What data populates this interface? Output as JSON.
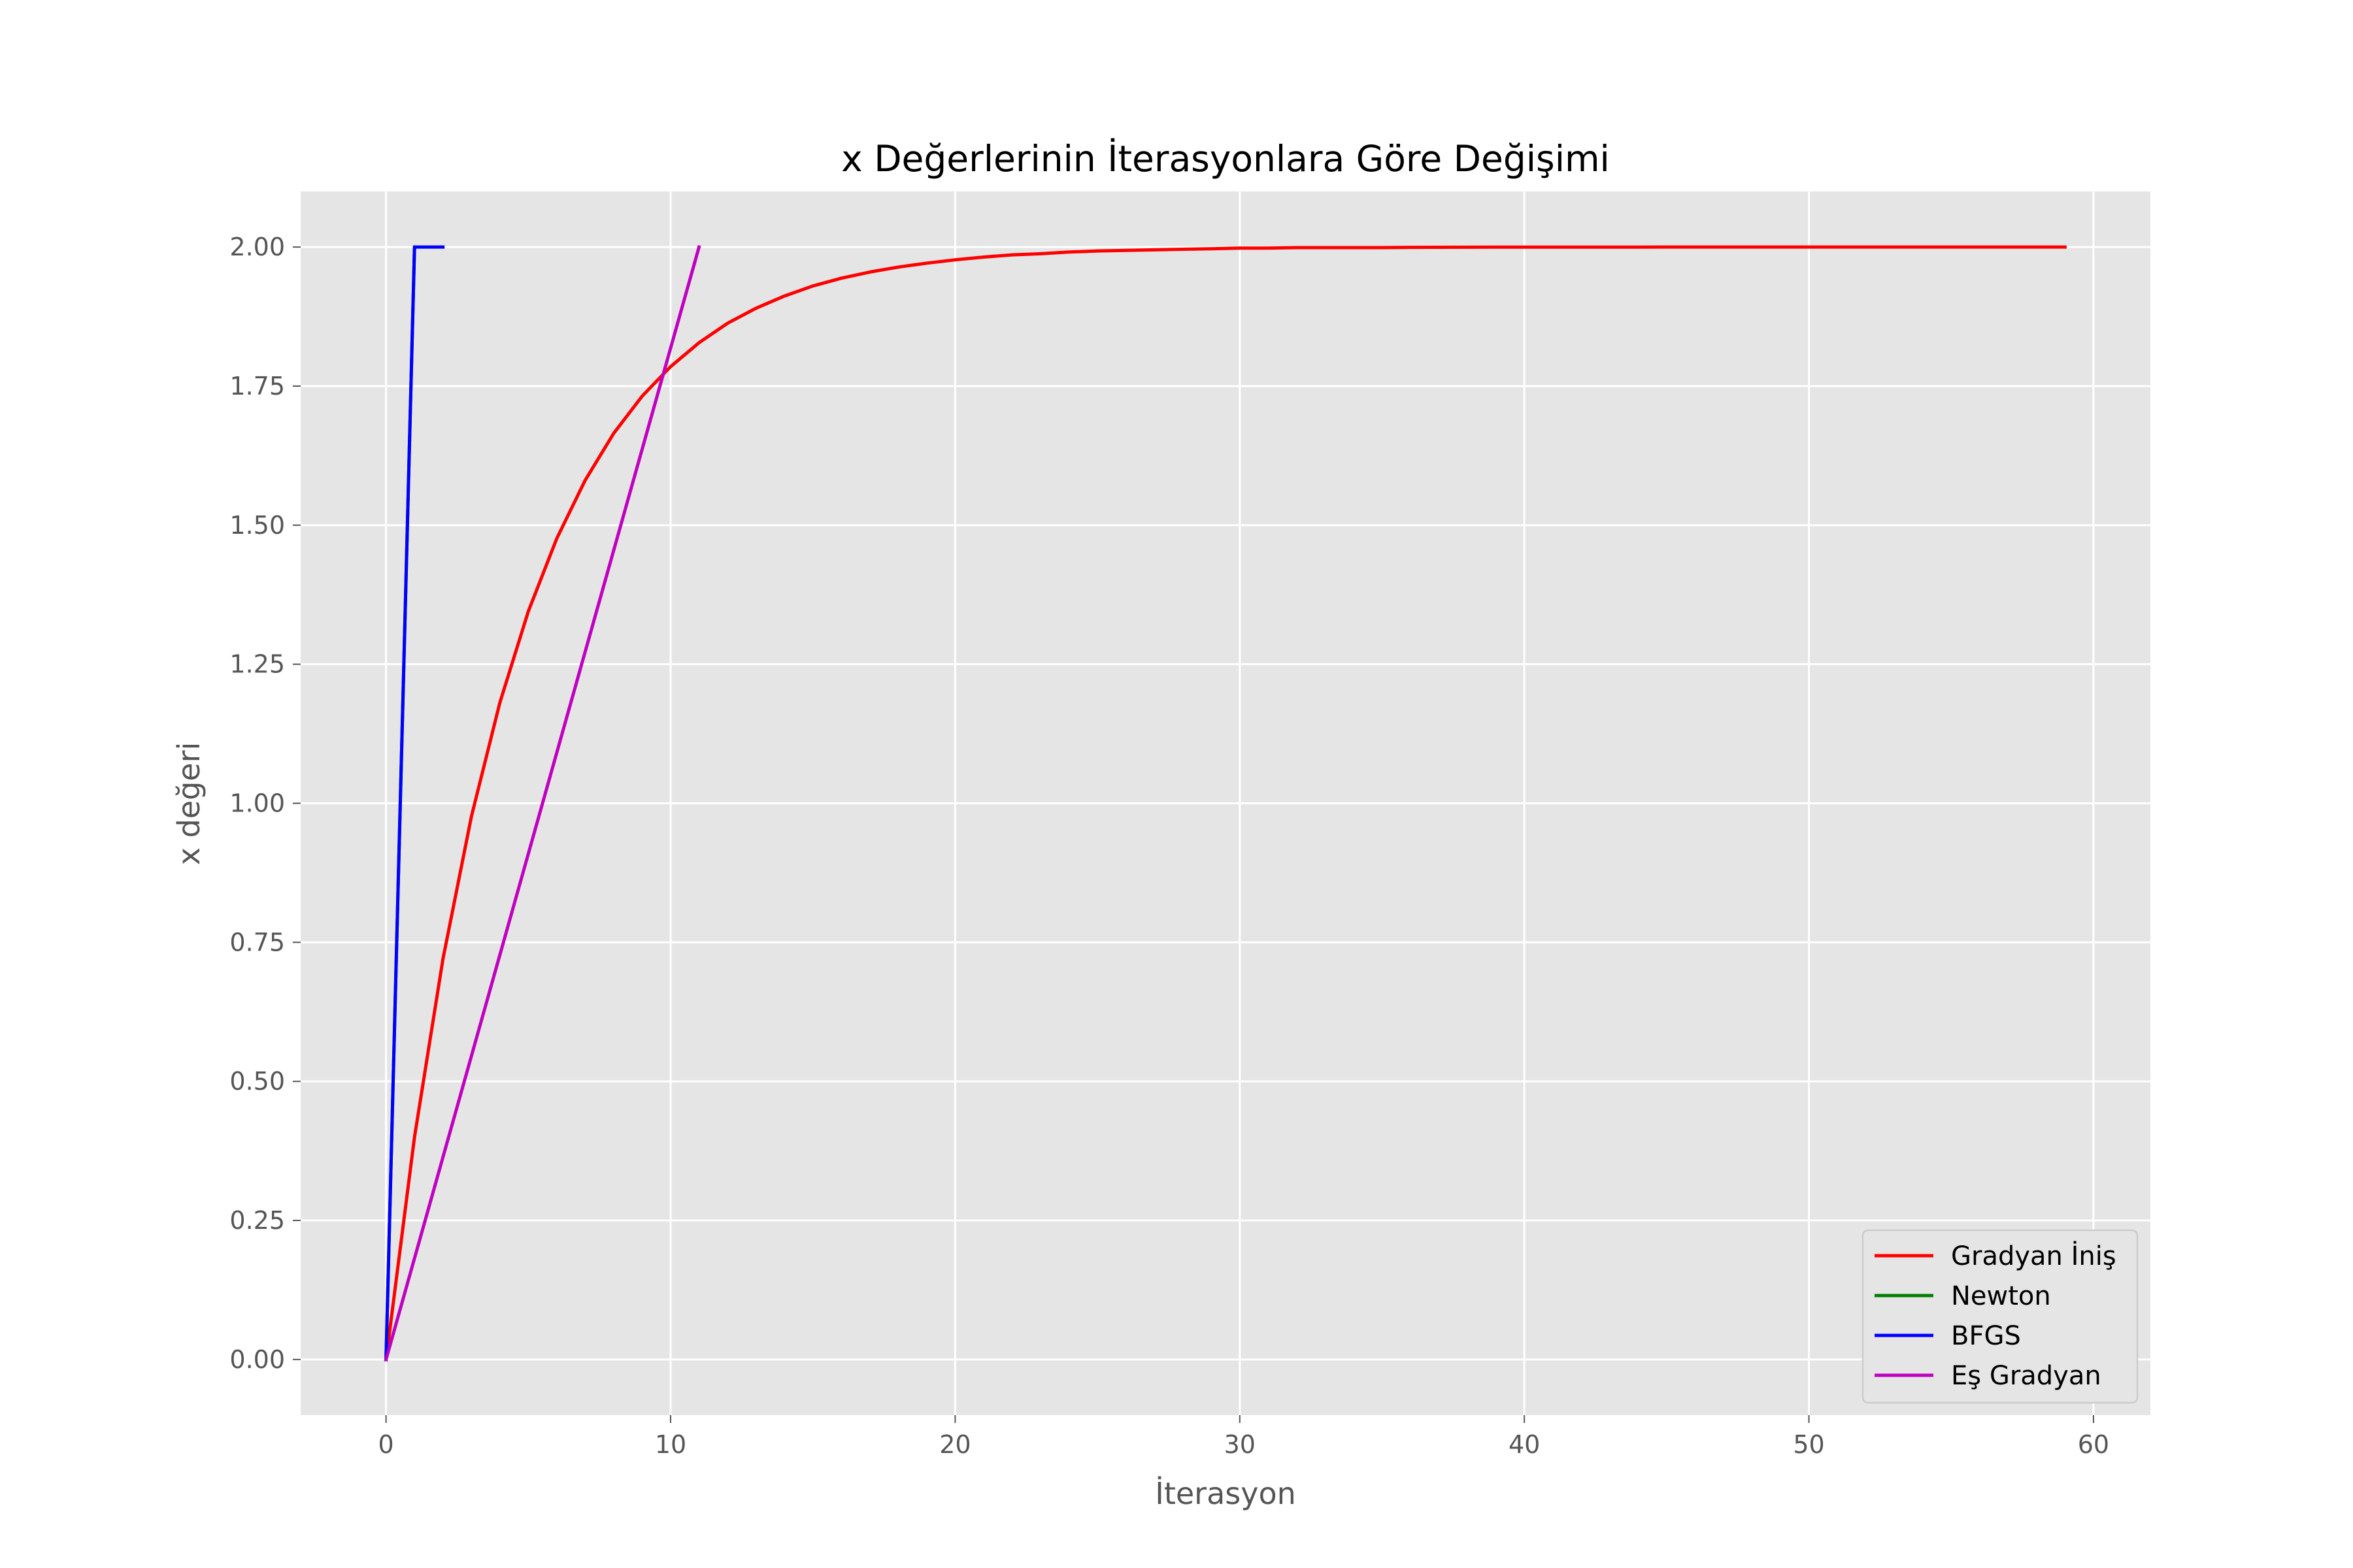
{
  "chart_data": {
    "type": "line",
    "title": "x Değerlerinin İterasyonlara Göre Değişimi",
    "xlabel": "İterasyon",
    "ylabel": "x değeri",
    "xlim": [
      -3,
      62
    ],
    "ylim": [
      -0.1,
      2.1
    ],
    "xticks": [
      0,
      10,
      20,
      30,
      40,
      50,
      60
    ],
    "yticks": [
      0.0,
      0.25,
      0.5,
      0.75,
      1.0,
      1.25,
      1.5,
      1.75,
      2.0
    ],
    "xtick_labels": [
      "0",
      "10",
      "20",
      "30",
      "40",
      "50",
      "60"
    ],
    "ytick_labels": [
      "0.00",
      "0.25",
      "0.50",
      "0.75",
      "1.00",
      "1.25",
      "1.50",
      "1.75",
      "2.00"
    ],
    "grid": true,
    "legend_position": "lower-right",
    "series": [
      {
        "name": "Gradyan İniş",
        "color": "#ff0000",
        "x": [
          0,
          1,
          2,
          3,
          4,
          5,
          6,
          7,
          8,
          9,
          10,
          11,
          12,
          13,
          14,
          15,
          16,
          17,
          18,
          19,
          20,
          21,
          22,
          23,
          24,
          25,
          26,
          27,
          28,
          29,
          30,
          31,
          32,
          33,
          34,
          35,
          36,
          37,
          38,
          39,
          40,
          41,
          42,
          43,
          44,
          45,
          46,
          47,
          48,
          49,
          50,
          51,
          52,
          53,
          54,
          55,
          56,
          57,
          58,
          59
        ],
        "y": [
          0.0,
          0.4,
          0.72,
          0.976,
          1.181,
          1.345,
          1.476,
          1.581,
          1.665,
          1.732,
          1.785,
          1.828,
          1.863,
          1.89,
          1.912,
          1.93,
          1.944,
          1.955,
          1.964,
          1.971,
          1.977,
          1.982,
          1.986,
          1.988,
          1.991,
          1.993,
          1.994,
          1.995,
          1.996,
          1.997,
          1.998,
          1.998,
          1.999,
          1.999,
          1.999,
          1.999,
          1.9995,
          1.9996,
          1.9997,
          1.9998,
          1.9998,
          1.9999,
          1.9999,
          1.9999,
          1.9999,
          2.0,
          2.0,
          2.0,
          2.0,
          2.0,
          2.0,
          2.0,
          2.0,
          2.0,
          2.0,
          2.0,
          2.0,
          2.0,
          2.0,
          2.0
        ]
      },
      {
        "name": "Newton",
        "color": "#008000",
        "x": [
          0,
          1
        ],
        "y": [
          0.0,
          2.0
        ]
      },
      {
        "name": "BFGS",
        "color": "#0000ff",
        "x": [
          0,
          1,
          2
        ],
        "y": [
          0.0,
          2.0,
          2.0
        ]
      },
      {
        "name": "Eş Gradyan",
        "color": "#bf00bf",
        "x": [
          0,
          11
        ],
        "y": [
          0.0,
          2.0
        ]
      }
    ]
  }
}
